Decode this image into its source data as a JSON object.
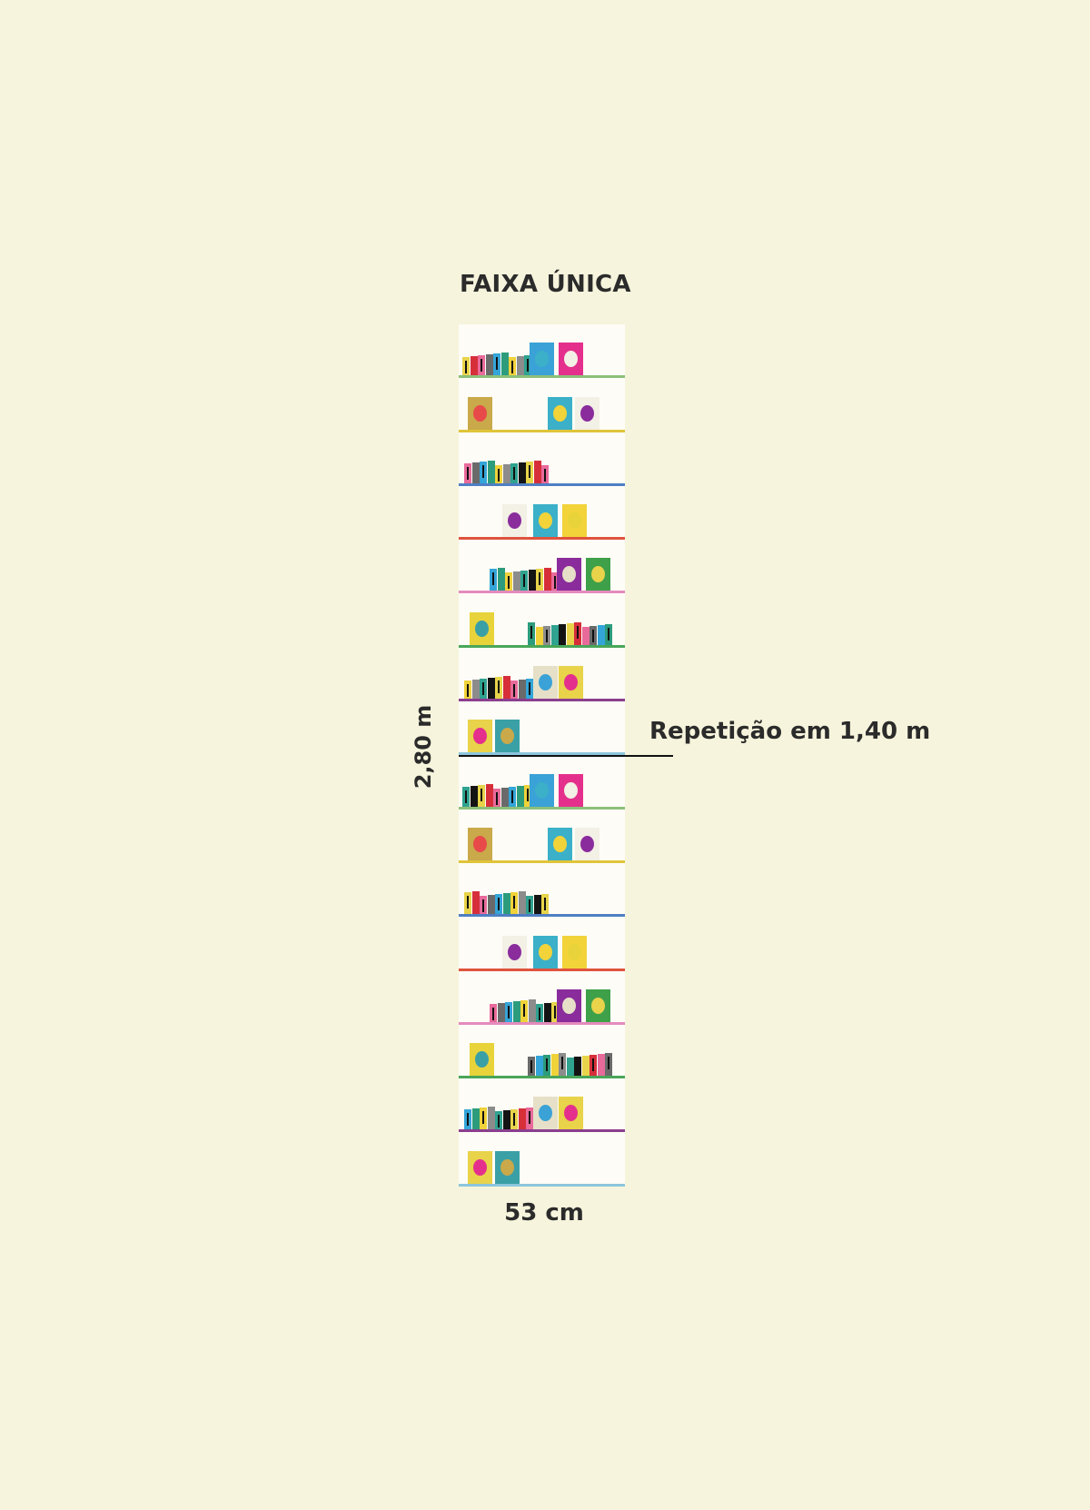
{
  "title": "FAIXA ÚNICA",
  "height_label": "2,80 m",
  "repeat_label": "Repetição em 1,40 m",
  "width_label": "53 cm",
  "shelf_colors": [
    "#8cc07a",
    "#e0c43a",
    "#4f7fc4",
    "#e0533d",
    "#e48bbd",
    "#4aa659",
    "#8b3f8f",
    "#8cc6dc"
  ],
  "spine_colors": [
    "#e8d44a",
    "#d62f3a",
    "#e86a9a",
    "#6a6a6a",
    "#34a5d8",
    "#2c9c7c",
    "#f0d23a",
    "#8c8c8c",
    "#2fa290",
    "#141414"
  ],
  "cover_colors": [
    "#3aa2d6",
    "#e4308c",
    "#c9a94a",
    "#3bb0c8",
    "#f3f0e6",
    "#e84a4a",
    "#f2d33a",
    "#8a2c9c",
    "#3fa04a",
    "#e8d33a",
    "#e6e0c8",
    "#e8d34a",
    "#3aa0a6"
  ]
}
